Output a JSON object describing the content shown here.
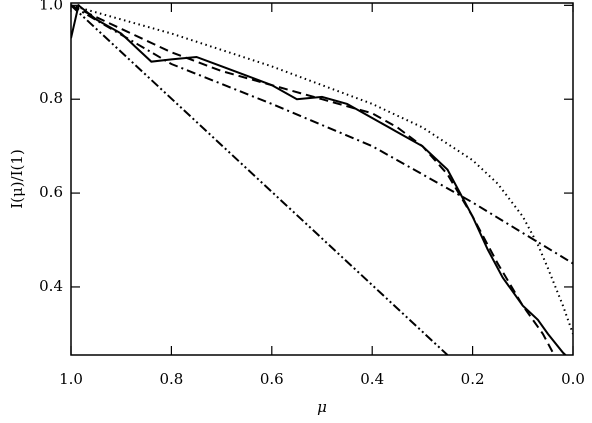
{
  "chart_data": {
    "type": "line",
    "x_label": "μ",
    "y_label": "I(μ)/I(1)",
    "xlim": [
      1.0,
      0.0
    ],
    "ylim": [
      0.255,
      1.005
    ],
    "xticks": [
      {
        "value": 1.0,
        "label": "1.0"
      },
      0.8,
      0.6,
      0.4,
      0.2,
      {
        "value": 0.0,
        "label": "0.0"
      }
    ],
    "yticks": [
      0.4,
      0.6,
      0.8,
      {
        "value": 1.0,
        "label": "1.0"
      }
    ],
    "grid": false,
    "series": [
      {
        "color": "#000000",
        "dash": "solid",
        "x": [
          1.0,
          0.985,
          0.95,
          0.9,
          0.87,
          0.84,
          0.8,
          0.75,
          0.7,
          0.65,
          0.6,
          0.55,
          0.5,
          0.45,
          0.4,
          0.35,
          0.3,
          0.25,
          0.22,
          0.2,
          0.17,
          0.14,
          0.1,
          0.07,
          0.05,
          0.02,
          0.01
        ],
        "values": [
          0.93,
          1.0,
          0.97,
          0.94,
          0.91,
          0.88,
          0.885,
          0.89,
          0.87,
          0.85,
          0.83,
          0.8,
          0.805,
          0.79,
          0.76,
          0.73,
          0.7,
          0.65,
          0.59,
          0.55,
          0.48,
          0.42,
          0.36,
          0.33,
          0.3,
          0.26,
          0.25
        ]
      },
      {
        "color": "#000000",
        "dash": "dashed",
        "x": [
          1.0,
          0.9,
          0.8,
          0.7,
          0.6,
          0.5,
          0.4,
          0.35,
          0.3,
          0.25,
          0.2,
          0.15,
          0.1,
          0.06,
          0.04
        ],
        "values": [
          1.0,
          0.95,
          0.9,
          0.86,
          0.83,
          0.8,
          0.77,
          0.74,
          0.7,
          0.64,
          0.55,
          0.45,
          0.36,
          0.3,
          0.26
        ]
      },
      {
        "color": "#000000",
        "dash": "dotted",
        "x": [
          1.0,
          0.8,
          0.6,
          0.4,
          0.3,
          0.2,
          0.15,
          0.1,
          0.07,
          0.05,
          0.02,
          0.0
        ],
        "values": [
          1.0,
          0.94,
          0.87,
          0.79,
          0.74,
          0.67,
          0.62,
          0.55,
          0.49,
          0.44,
          0.36,
          0.3
        ]
      },
      {
        "color": "#000000",
        "dash": "dashdot",
        "x": [
          1.0,
          0.8,
          0.6,
          0.4,
          0.2,
          0.0
        ],
        "values": [
          1.0,
          0.875,
          0.79,
          0.7,
          0.58,
          0.45
        ]
      },
      {
        "color": "#000000",
        "dash": "dashdotdot",
        "x": [
          1.0,
          0.25
        ],
        "values": [
          1.0,
          0.255
        ]
      }
    ]
  }
}
